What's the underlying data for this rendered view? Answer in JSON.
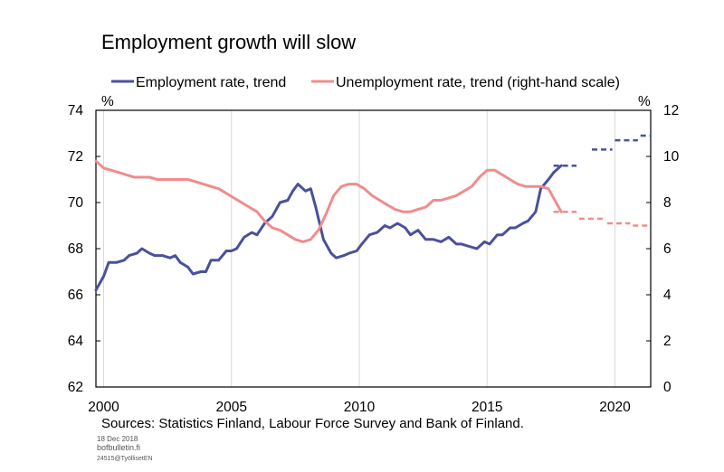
{
  "chart_data": {
    "type": "line",
    "title": "Employment growth will slow",
    "left_axis": {
      "unit": "%",
      "ylim": [
        62,
        74
      ],
      "ticks": [
        "62",
        "64",
        "66",
        "68",
        "70",
        "72",
        "74"
      ]
    },
    "right_axis": {
      "unit": "%",
      "ylim": [
        0,
        12
      ],
      "ticks": [
        "0",
        "2",
        "4",
        "6",
        "8",
        "10",
        "12"
      ]
    },
    "x_axis": {
      "xlim": [
        1999.7,
        2021.4
      ],
      "ticks": [
        "2000",
        "2005",
        "2010",
        "2015",
        "2020"
      ],
      "tick_values": [
        2000,
        2005,
        2010,
        2015,
        2020
      ]
    },
    "grid": "vertical",
    "legend_placement": "top",
    "series": [
      {
        "name": "Employment rate, trend",
        "axis": "left",
        "color": "#4a519a",
        "x": [
          1999.7,
          2000.0,
          2000.2,
          2000.5,
          2000.8,
          2001.0,
          2001.3,
          2001.5,
          2001.8,
          2002.0,
          2002.3,
          2002.6,
          2002.8,
          2003.0,
          2003.3,
          2003.5,
          2003.8,
          2004.0,
          2004.2,
          2004.5,
          2004.8,
          2005.0,
          2005.2,
          2005.5,
          2005.8,
          2006.0,
          2006.3,
          2006.6,
          2006.9,
          2007.2,
          2007.4,
          2007.6,
          2007.9,
          2008.1,
          2008.3,
          2008.6,
          2008.9,
          2009.1,
          2009.4,
          2009.6,
          2009.9,
          2010.1,
          2010.4,
          2010.7,
          2011.0,
          2011.2,
          2011.5,
          2011.8,
          2012.0,
          2012.3,
          2012.6,
          2012.9,
          2013.2,
          2013.5,
          2013.8,
          2014.0,
          2014.3,
          2014.6,
          2014.9,
          2015.1,
          2015.4,
          2015.6,
          2015.9,
          2016.1,
          2016.4,
          2016.6,
          2016.9,
          2017.1,
          2017.4,
          2017.6,
          2017.9
        ],
        "values": [
          66.2,
          66.8,
          67.4,
          67.4,
          67.5,
          67.7,
          67.8,
          68.0,
          67.8,
          67.7,
          67.7,
          67.6,
          67.7,
          67.4,
          67.2,
          66.9,
          67.0,
          67.0,
          67.5,
          67.5,
          67.9,
          67.9,
          68.0,
          68.5,
          68.7,
          68.6,
          69.1,
          69.4,
          70.0,
          70.1,
          70.5,
          70.8,
          70.5,
          70.6,
          69.8,
          68.4,
          67.8,
          67.6,
          67.7,
          67.8,
          67.9,
          68.2,
          68.6,
          68.7,
          69.0,
          68.9,
          69.1,
          68.9,
          68.6,
          68.8,
          68.4,
          68.4,
          68.3,
          68.5,
          68.2,
          68.2,
          68.1,
          68.0,
          68.3,
          68.2,
          68.6,
          68.6,
          68.9,
          68.9,
          69.1,
          69.2,
          69.6,
          70.6,
          71.0,
          71.3,
          71.6
        ]
      },
      {
        "name": "Unemployment rate, trend (right-hand scale)",
        "axis": "right",
        "color": "#f08c8c",
        "x": [
          1999.7,
          2000.0,
          2000.3,
          2000.6,
          2000.9,
          2001.2,
          2001.5,
          2001.8,
          2002.1,
          2002.4,
          2002.7,
          2003.0,
          2003.3,
          2003.6,
          2003.9,
          2004.2,
          2004.5,
          2004.8,
          2005.1,
          2005.4,
          2005.7,
          2006.0,
          2006.3,
          2006.6,
          2006.9,
          2007.2,
          2007.5,
          2007.8,
          2008.1,
          2008.4,
          2008.7,
          2009.0,
          2009.3,
          2009.6,
          2009.9,
          2010.2,
          2010.5,
          2010.8,
          2011.1,
          2011.4,
          2011.7,
          2012.0,
          2012.3,
          2012.6,
          2012.9,
          2013.2,
          2013.5,
          2013.8,
          2014.1,
          2014.4,
          2014.7,
          2015.0,
          2015.3,
          2015.6,
          2015.9,
          2016.2,
          2016.5,
          2016.8,
          2017.1,
          2017.4,
          2017.7,
          2017.9
        ],
        "values": [
          9.8,
          9.5,
          9.4,
          9.3,
          9.2,
          9.1,
          9.1,
          9.1,
          9.0,
          9.0,
          9.0,
          9.0,
          9.0,
          8.9,
          8.8,
          8.7,
          8.6,
          8.4,
          8.2,
          8.0,
          7.8,
          7.6,
          7.2,
          6.9,
          6.8,
          6.6,
          6.4,
          6.3,
          6.4,
          6.8,
          7.5,
          8.3,
          8.7,
          8.8,
          8.8,
          8.6,
          8.3,
          8.1,
          7.9,
          7.7,
          7.6,
          7.6,
          7.7,
          7.8,
          8.1,
          8.1,
          8.2,
          8.3,
          8.5,
          8.7,
          9.1,
          9.4,
          9.4,
          9.2,
          9.0,
          8.8,
          8.7,
          8.7,
          8.7,
          8.6,
          8.0,
          7.6
        ]
      }
    ],
    "forecast_segments": [
      {
        "series": 0,
        "x": [
          2017.6,
          2018.5
        ],
        "value": 71.6
      },
      {
        "series": 0,
        "x": [
          2019.1,
          2019.9
        ],
        "value": 72.3
      },
      {
        "series": 0,
        "x": [
          2020.0,
          2020.9
        ],
        "value": 72.7
      },
      {
        "series": 0,
        "x": [
          2021.0,
          2021.4
        ],
        "value": 72.9
      },
      {
        "series": 1,
        "x": [
          2017.6,
          2018.5
        ],
        "value": 7.6
      },
      {
        "series": 1,
        "x": [
          2018.6,
          2019.6
        ],
        "value": 7.3
      },
      {
        "series": 1,
        "x": [
          2019.7,
          2020.6
        ],
        "value": 7.1
      },
      {
        "series": 1,
        "x": [
          2020.7,
          2021.4
        ],
        "value": 7.0
      }
    ]
  },
  "footer": {
    "sources": "Sources: Statistics Finland, Labour Force Survey and Bank of Finland.",
    "date": "18 Dec 2018",
    "site": "bofbulletin.fi",
    "code": "24515@TyöllisetEN"
  }
}
